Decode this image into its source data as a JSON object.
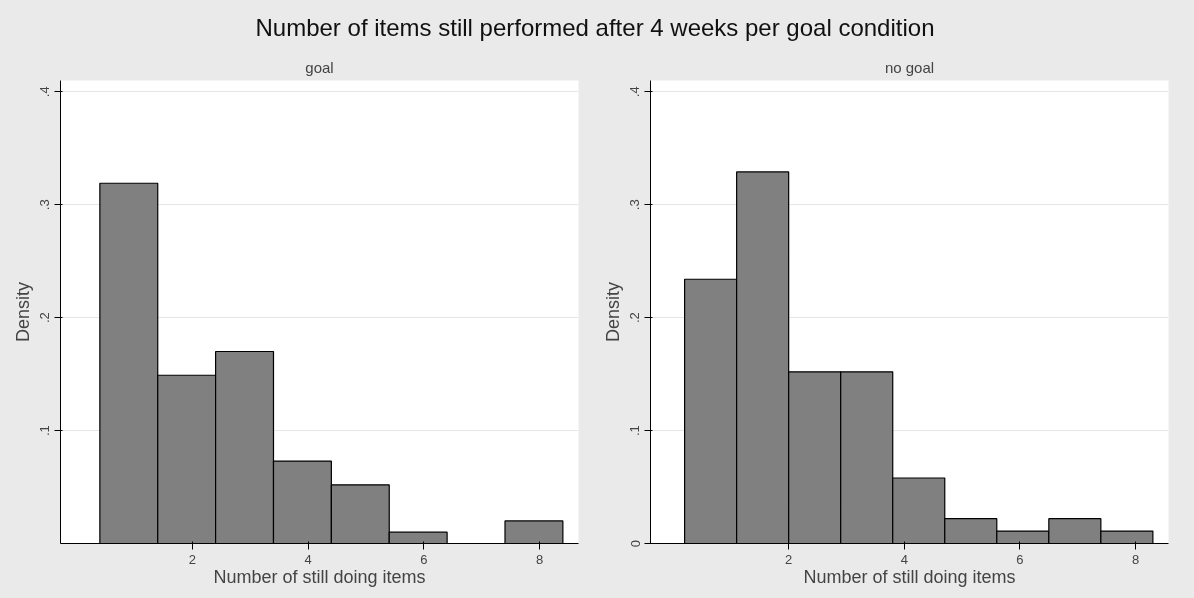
{
  "chart_data": [
    {
      "type": "histogram",
      "title": "Number of items still performed after 4 weeks per goal condition",
      "subtitle": "goal",
      "xlabel": "Number of still doing items",
      "ylabel": "Density",
      "bins": [
        0.4,
        1.4,
        2.4,
        3.4,
        4.4,
        5.4,
        6.4,
        7.4,
        8.4
      ],
      "values": [
        0.319,
        0.149,
        0.17,
        0.073,
        0.052,
        0.01,
        0,
        0.02
      ],
      "color": "#808080",
      "xlim": [
        -0.28,
        8.67
      ],
      "xticks": [
        2,
        4,
        6,
        8
      ],
      "ylim": [
        0,
        0.41
      ],
      "yticks": [
        {
          "value": 0.1,
          "label": ".1"
        },
        {
          "value": 0.2,
          "label": ".2"
        },
        {
          "value": 0.3,
          "label": ".3"
        },
        {
          "value": 0.4,
          "label": ".4"
        }
      ],
      "grid": "y"
    },
    {
      "type": "histogram",
      "subtitle": "no goal",
      "xlabel": "Number of still doing items",
      "ylabel": "Density",
      "bins": [
        0.2,
        1.1,
        2.0,
        2.9,
        3.8,
        4.7,
        5.6,
        6.5,
        7.4,
        8.3
      ],
      "values": [
        0.234,
        0.329,
        0.152,
        0.152,
        0.058,
        0.022,
        0.011,
        0.022,
        0.011
      ],
      "color": "#808080",
      "xlim": [
        -0.39,
        8.57
      ],
      "xticks": [
        2,
        4,
        6,
        8
      ],
      "ylim": [
        0,
        0.41
      ],
      "yticks": [
        0,
        {
          "value": 0.1,
          "label": ".1"
        },
        {
          "value": 0.2,
          "label": ".2"
        },
        {
          "value": 0.3,
          "label": ".3"
        },
        {
          "value": 0.4,
          "label": ".4"
        }
      ],
      "grid": "y"
    }
  ]
}
